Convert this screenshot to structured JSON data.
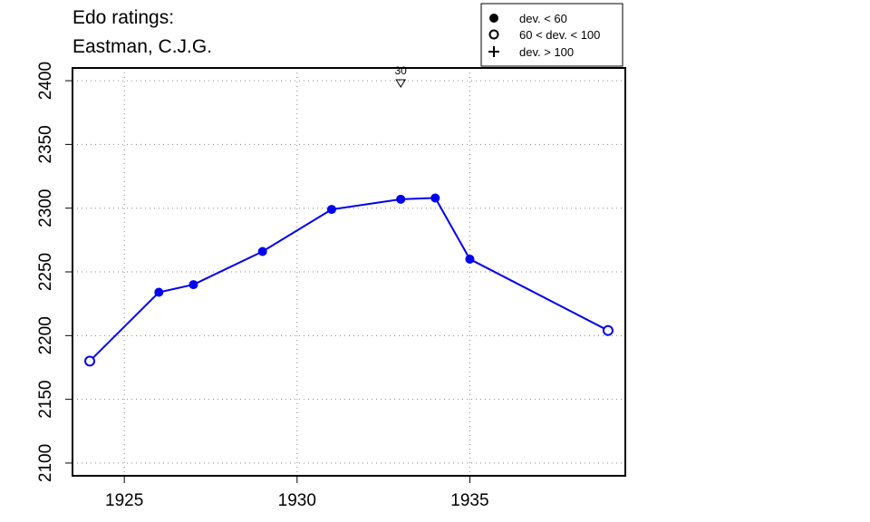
{
  "title_line1": "Edo ratings:",
  "title_line2": "Eastman, C.J.G.",
  "legend": [
    {
      "marker": "filled-circle",
      "label": "dev. < 60"
    },
    {
      "marker": "open-circle",
      "label": "60 < dev. < 100"
    },
    {
      "marker": "plus",
      "label": "dev. > 100"
    }
  ],
  "chart_data": {
    "type": "line",
    "x_ticks": [
      1925,
      1930,
      1935
    ],
    "y_ticks": [
      2100,
      2150,
      2200,
      2250,
      2300,
      2350,
      2400
    ],
    "xlim": [
      1923.5,
      1939.5
    ],
    "ylim": [
      2090,
      2410
    ],
    "grid": true,
    "legend_position": "top-right",
    "line_color": "#0000ee",
    "points": [
      {
        "x": 1924,
        "y": 2180,
        "marker": "open"
      },
      {
        "x": 1926,
        "y": 2234,
        "marker": "filled"
      },
      {
        "x": 1927,
        "y": 2240,
        "marker": "filled"
      },
      {
        "x": 1929,
        "y": 2266,
        "marker": "filled"
      },
      {
        "x": 1931,
        "y": 2299,
        "marker": "filled"
      },
      {
        "x": 1933,
        "y": 2307,
        "marker": "filled"
      },
      {
        "x": 1934,
        "y": 2308,
        "marker": "filled"
      },
      {
        "x": 1935,
        "y": 2260,
        "marker": "filled"
      },
      {
        "x": 1939,
        "y": 2204,
        "marker": "open"
      }
    ],
    "annotation": {
      "x": 1933,
      "label": "30",
      "marker": "down-triangle"
    }
  }
}
